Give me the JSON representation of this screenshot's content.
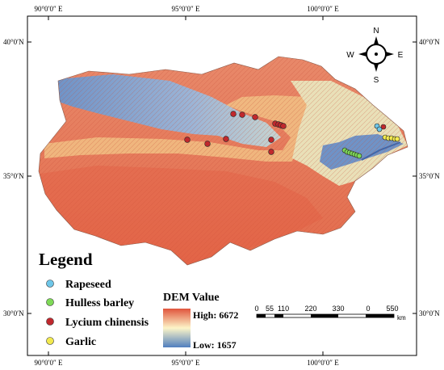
{
  "graticule": {
    "top_ticks": [
      "90°0′0″ E",
      "95°0′0″ E",
      "100°0′0″ E"
    ],
    "bottom_ticks": [
      "90°0′0″ E",
      "95°0′0″ E",
      "100°0′0″ E"
    ],
    "left_ticks": [
      "40°0′N",
      "35°0′N",
      "30°0′N"
    ],
    "right_ticks": [
      "40°0′N",
      "35°0′N",
      "30°0′N"
    ]
  },
  "compass": {
    "north": "N",
    "south": "S",
    "east": "E",
    "west": "W"
  },
  "legend": {
    "title": "Legend",
    "items": [
      {
        "label": "Rapeseed",
        "color": "#6ec6e8"
      },
      {
        "label": "Hulless barley",
        "color": "#7ed957"
      },
      {
        "label": "Lycium chinensis",
        "color": "#c0282d"
      },
      {
        "label": "Garlic",
        "color": "#f2e94e"
      }
    ]
  },
  "dem": {
    "title": "DEM Value",
    "high_label": "High: 6672",
    "low_label": "Low: 1657",
    "high_color": "#e0543c",
    "mid_color": "#fdf5c8",
    "low_color": "#4f7fbf"
  },
  "scale_bar": {
    "labels": [
      "0",
      "55",
      "110",
      "220",
      "330",
      "0",
      "550"
    ],
    "unit": "km"
  },
  "sample_points": {
    "rapeseed": 2,
    "hulless_barley": 7,
    "lycium_chinensis": 13,
    "garlic": 5
  }
}
